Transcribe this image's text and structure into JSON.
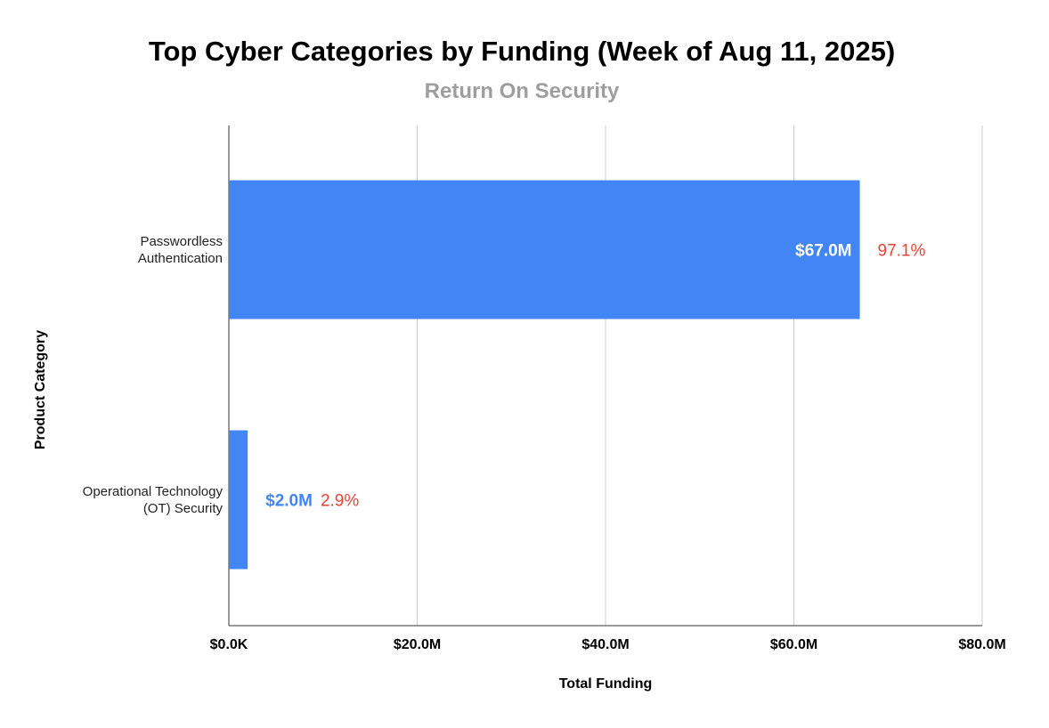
{
  "chart_data": {
    "type": "bar",
    "orientation": "horizontal",
    "title": "Top Cyber Categories by Funding (Week of Aug 11, 2025)",
    "subtitle": "Return On Security",
    "xlabel": "Total Funding",
    "ylabel": "Product Category",
    "xlim": [
      0,
      80
    ],
    "xunit": "$M",
    "x_ticks": [
      0,
      20,
      40,
      60,
      80
    ],
    "x_tick_labels": [
      "$0.0K",
      "$20.0M",
      "$40.0M",
      "$60.0M",
      "$80.0M"
    ],
    "grid": true,
    "categories": [
      [
        "Passwordless",
        "Authentication"
      ],
      [
        "Operational Technology",
        "(OT) Security"
      ]
    ],
    "values": [
      67.0,
      2.0
    ],
    "value_labels": [
      "$67.0M",
      "$2.0M"
    ],
    "percent_labels": [
      "97.1%",
      "2.9%"
    ],
    "colors": {
      "bar": "#4285f4",
      "value_inside": "#ffffff",
      "value_outside": "#4285f4",
      "percent": "#e94235",
      "subtitle": "#9e9e9e"
    }
  }
}
